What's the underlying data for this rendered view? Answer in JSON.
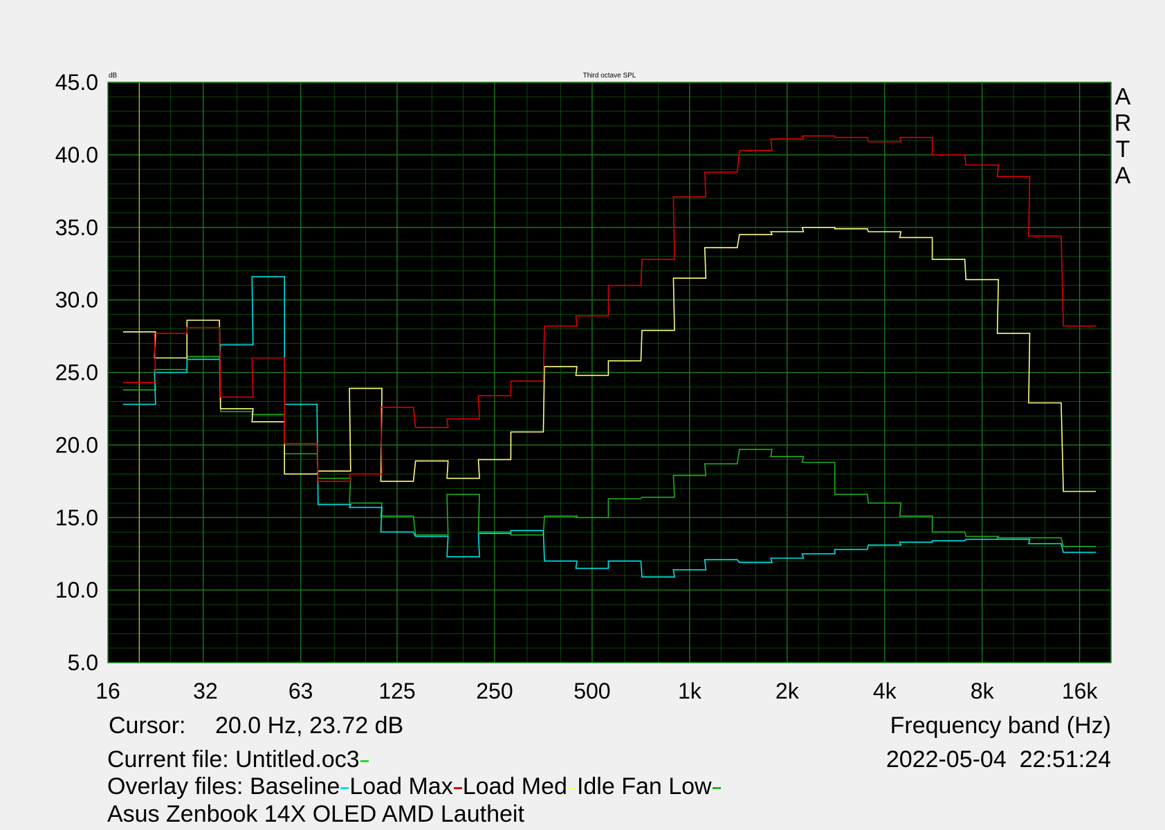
{
  "chart_data": {
    "type": "line",
    "title": "Third octave SPL",
    "y_unit_label": "dB",
    "brand": [
      "A",
      "R",
      "T",
      "A"
    ],
    "xlabel": "Frequency band (Hz)",
    "x_scale": "log",
    "xlim": [
      16,
      20000
    ],
    "ylim": [
      5.0,
      45.0
    ],
    "y_ticks": [
      "45.0",
      "40.0",
      "35.0",
      "30.0",
      "25.0",
      "20.0",
      "15.0",
      "10.0",
      "5.0"
    ],
    "x_ticks": [
      {
        "label": "16",
        "value": 16
      },
      {
        "label": "32",
        "value": 32
      },
      {
        "label": "63",
        "value": 63
      },
      {
        "label": "125",
        "value": 125
      },
      {
        "label": "250",
        "value": 250
      },
      {
        "label": "500",
        "value": 500
      },
      {
        "label": "1k",
        "value": 1000
      },
      {
        "label": "2k",
        "value": 2000
      },
      {
        "label": "4k",
        "value": 4000
      },
      {
        "label": "8k",
        "value": 8000
      },
      {
        "label": "16k",
        "value": 16000
      }
    ],
    "grid": true,
    "background": "#000000",
    "grid_color": "#0f5a0f",
    "cursor_line": {
      "x": 20,
      "color": "#c8b400"
    },
    "bands_hz": [
      20,
      25,
      31.5,
      40,
      50,
      63,
      80,
      100,
      125,
      160,
      200,
      250,
      315,
      400,
      500,
      630,
      800,
      1000,
      1250,
      1600,
      2000,
      2500,
      3150,
      4000,
      5000,
      6300,
      8000,
      10000,
      12500,
      16000
    ],
    "series": [
      {
        "name": "Baseline",
        "color": "#00e5e5",
        "values": [
          22.8,
          25.0,
          25.9,
          26.9,
          31.6,
          22.8,
          15.9,
          15.7,
          14.0,
          13.7,
          12.3,
          13.9,
          14.1,
          12.0,
          11.5,
          12.0,
          10.9,
          11.4,
          12.1,
          11.9,
          12.2,
          12.5,
          12.8,
          13.1,
          13.3,
          13.4,
          13.5,
          13.5,
          13.2,
          12.6
        ]
      },
      {
        "name": "Load Max",
        "color": "#e00000",
        "values": [
          24.3,
          27.7,
          28.1,
          23.3,
          26.0,
          20.1,
          17.5,
          18.0,
          22.6,
          21.2,
          21.8,
          23.4,
          24.4,
          28.2,
          28.9,
          31.0,
          32.8,
          37.1,
          38.8,
          40.3,
          41.1,
          41.3,
          41.2,
          40.9,
          41.2,
          40.0,
          39.3,
          38.5,
          34.4,
          28.2
        ]
      },
      {
        "name": "Load Med",
        "color": "#ffff80",
        "values": [
          27.8,
          26.0,
          28.6,
          22.5,
          21.6,
          18.0,
          18.2,
          23.9,
          17.5,
          18.9,
          17.7,
          19.0,
          20.9,
          25.4,
          24.8,
          25.8,
          27.9,
          31.5,
          33.6,
          34.5,
          34.7,
          35.0,
          34.9,
          34.7,
          34.3,
          32.8,
          31.4,
          27.7,
          22.9,
          16.8
        ]
      },
      {
        "name": "Idle Fan Low",
        "color": "#20b020",
        "values": [
          23.8,
          25.2,
          26.1,
          22.3,
          22.1,
          19.4,
          17.7,
          16.0,
          15.1,
          13.8,
          16.6,
          14.0,
          13.8,
          15.1,
          15.0,
          16.3,
          16.4,
          17.9,
          18.7,
          19.7,
          19.2,
          18.8,
          16.6,
          16.0,
          15.1,
          14.0,
          13.7,
          13.6,
          13.6,
          13.0
        ]
      }
    ]
  },
  "info": {
    "cursor_label": "Cursor:",
    "cursor_value": "20.0 Hz, 23.72 dB",
    "xlabel": "Frequency band (Hz)",
    "current_file_label": "Current file: Untitled.oc3",
    "current_file_color": "#20e020",
    "timestamp": "2022-05-04  22:51:24",
    "overlay_label": "Overlay files: ",
    "overlays": [
      {
        "name": "Baseline",
        "color": "#00e5e5"
      },
      {
        "name": "Load Max",
        "color": "#e00000"
      },
      {
        "name": "Load Med",
        "color": "#ffff80"
      },
      {
        "name": "Idle Fan Low",
        "color": "#20b020"
      }
    ],
    "description": "Asus Zenbook 14X OLED AMD Lautheit"
  }
}
